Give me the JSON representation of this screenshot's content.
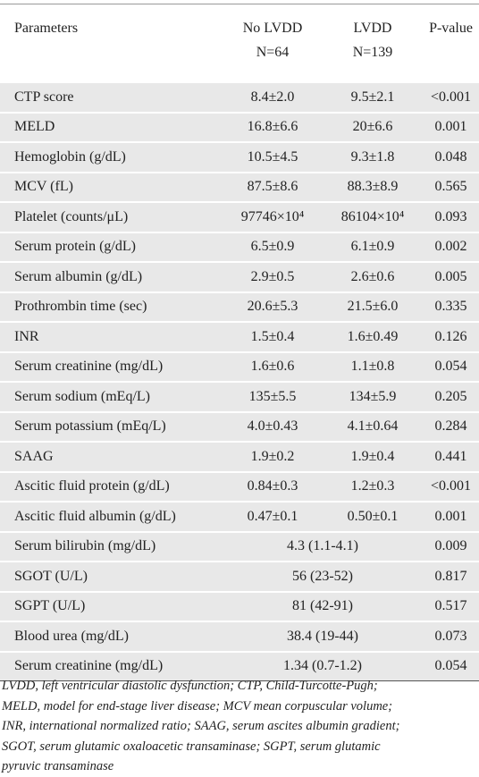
{
  "table": {
    "header": [
      [
        "Parameters"
      ],
      [
        "No LVDD",
        "N=64"
      ],
      [
        "LVDD",
        "N=139"
      ],
      [
        "P-value"
      ]
    ],
    "rows": [
      [
        "CTP score",
        "8.4±2.0",
        "9.5±2.1",
        "<0.001"
      ],
      [
        "MELD",
        "16.8±6.6",
        "20±6.6",
        "0.001"
      ],
      [
        "Hemoglobin (g/dL)",
        "10.5±4.5",
        "9.3±1.8",
        "0.048"
      ],
      [
        "MCV (fL)",
        "87.5±8.6",
        "88.3±8.9",
        "0.565"
      ],
      [
        "Platelet (counts/μL)",
        "97746×10⁴",
        "86104×10⁴",
        "0.093"
      ],
      [
        "Serum protein (g/dL)",
        "6.5±0.9",
        "6.1±0.9",
        "0.002"
      ],
      [
        "Serum albumin (g/dL)",
        "2.9±0.5",
        "2.6±0.6",
        "0.005"
      ],
      [
        "Prothrombin time (sec)",
        "20.6±5.3",
        "21.5±6.0",
        "0.335"
      ],
      [
        "INR",
        "1.5±0.4",
        "1.6±0.49",
        "0.126"
      ],
      [
        "Serum creatinine (mg/dL)",
        "1.6±0.6",
        "1.1±0.8",
        "0.054"
      ],
      [
        "Serum sodium (mEq/L)",
        "135±5.5",
        "134±5.9",
        "0.205"
      ],
      [
        "Serum potassium (mEq/L)",
        "4.0±0.43",
        "4.1±0.64",
        "0.284"
      ],
      [
        "SAAG",
        "1.9±0.2",
        "1.9±0.4",
        "0.441"
      ],
      [
        "Ascitic fluid protein (g/dL)",
        "0.84±0.3",
        "1.2±0.3",
        "<0.001"
      ],
      [
        "Ascitic fluid albumin (g/dL)",
        "0.47±0.1",
        "0.50±0.1",
        "0.001"
      ],
      [
        "Serum bilirubin (mg/dL)",
        "4.3 (1.1-4.1)",
        "0.009"
      ],
      [
        "SGOT (U/L)",
        "56 (23-52)",
        "0.817"
      ],
      [
        "SGPT (U/L)",
        "81 (42-91)",
        "0.517"
      ],
      [
        "Blood urea (mg/dL)",
        "38.4 (19-44)",
        "0.073"
      ],
      [
        "Serum creatinine (mg/dL)",
        "1.34 (0.7-1.2)",
        "0.054"
      ]
    ]
  },
  "footnote": [
    "LVDD, left ventricular diastolic dysfunction; CTP, Child-Turcotte-Pugh;",
    "MELD, model for end-stage liver disease; MCV mean corpuscular volume;",
    "INR, international normalized ratio; SAAG, serum ascites albumin gradient;",
    "SGOT, serum glutamic oxaloacetic transaminase; SGPT, serum glutamic",
    "pyruvic transaminase"
  ]
}
